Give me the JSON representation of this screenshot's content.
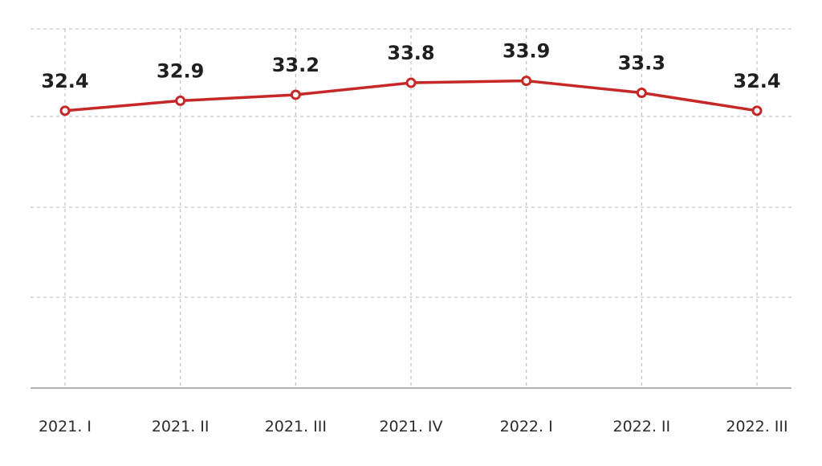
{
  "chart_data": {
    "type": "line",
    "categories": [
      "2021. I",
      "2021. II",
      "2021. III",
      "2021. IV",
      "2022. I",
      "2022. II",
      "2022. III"
    ],
    "series": [
      {
        "values": [
          32.4,
          32.9,
          33.2,
          33.8,
          33.9,
          33.3,
          32.4
        ],
        "value_labels": [
          "32.4",
          "32.9",
          "33.2",
          "33.8",
          "33.9",
          "33.3",
          "32.4"
        ]
      }
    ],
    "ylim": [
      18.5,
      36.5
    ],
    "grid": true,
    "grid_style": "dashed",
    "legend": "none",
    "colors": {
      "line": "#c62828",
      "grid": "#b7b7b7",
      "text": "#1f1f1f"
    }
  }
}
